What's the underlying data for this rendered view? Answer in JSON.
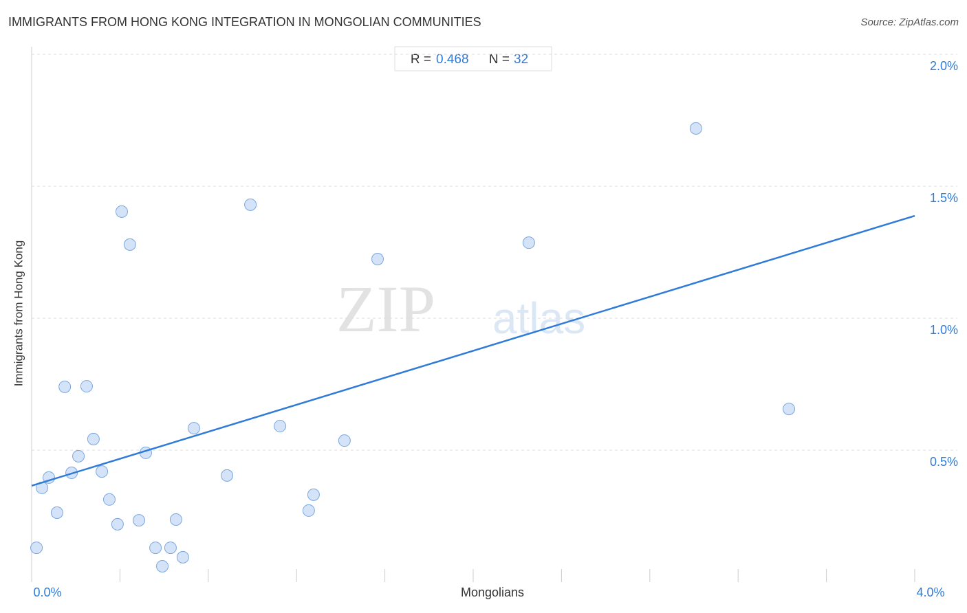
{
  "chart_data": {
    "type": "scatter",
    "title": "IMMIGRANTS FROM HONG KONG INTEGRATION IN MONGOLIAN COMMUNITIES",
    "source": "Source: ZipAtlas.com",
    "x_label": "Mongolians",
    "y_label": "Immigrants from Hong Kong",
    "watermark": [
      "ZIP",
      "atlas"
    ],
    "stats": {
      "r_label": "R =",
      "r": 0.468,
      "n_label": "N =",
      "n": 32
    },
    "xlim": [
      0,
      4
    ],
    "ylim": [
      0,
      2
    ],
    "xticks": [
      {
        "value": 0,
        "label": "0.0%"
      },
      {
        "value": 0.4,
        "label": null
      },
      {
        "value": 0.8,
        "label": null
      },
      {
        "value": 1.2,
        "label": null
      },
      {
        "value": 1.6,
        "label": null
      },
      {
        "value": 2.0,
        "label": null
      },
      {
        "value": 2.4,
        "label": null
      },
      {
        "value": 2.8,
        "label": null
      },
      {
        "value": 3.2,
        "label": null
      },
      {
        "value": 3.6,
        "label": null
      },
      {
        "value": 4,
        "label": "4.0%"
      }
    ],
    "yticks": [
      {
        "value": 0.5,
        "label": "0.5%"
      },
      {
        "value": 1.0,
        "label": "1.0%"
      },
      {
        "value": 1.5,
        "label": "1.5%"
      },
      {
        "value": 2.0,
        "label": "2.0%"
      }
    ],
    "grid": true,
    "point_color": "#c9dcf5",
    "point_edge_color": "#7aa7e0",
    "trend_color": "#2f7bd8",
    "trendline": {
      "x": [
        0,
        4
      ],
      "y": [
        0.365,
        1.388
      ]
    },
    "x": [
      0.022,
      0.047,
      0.078,
      0.115,
      0.15,
      0.181,
      0.212,
      0.249,
      0.28,
      0.318,
      0.352,
      0.389,
      0.408,
      0.445,
      0.486,
      0.517,
      0.561,
      0.592,
      0.629,
      0.654,
      0.685,
      0.735,
      0.885,
      0.991,
      1.125,
      1.255,
      1.277,
      1.417,
      1.567,
      2.252,
      3.009,
      3.43
    ],
    "y": [
      0.13,
      0.357,
      0.396,
      0.263,
      0.74,
      0.414,
      0.477,
      0.742,
      0.542,
      0.419,
      0.313,
      0.219,
      1.404,
      1.279,
      0.234,
      0.49,
      0.13,
      0.06,
      0.13,
      0.237,
      0.094,
      0.583,
      0.404,
      1.43,
      0.591,
      0.271,
      0.331,
      0.536,
      1.224,
      1.286,
      1.719,
      0.656
    ]
  }
}
